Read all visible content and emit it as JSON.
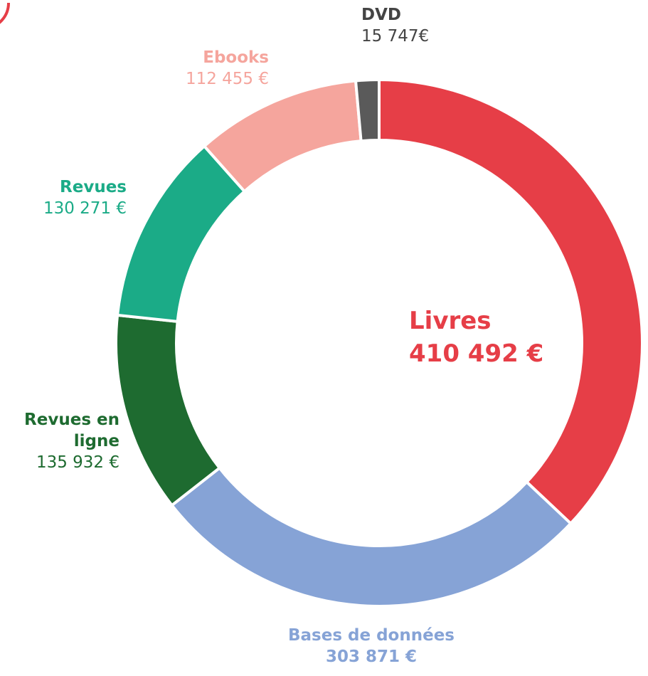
{
  "chart_data": {
    "type": "donut",
    "categories": [
      "Livres",
      "Bases de données",
      "Revues en ligne",
      "Revues",
      "Ebooks",
      "DVD"
    ],
    "values": [
      410492,
      303871,
      135932,
      130271,
      112455,
      15747
    ],
    "value_labels": [
      "410 492 €",
      "303 871 €",
      "135 932 €",
      "130 271 €",
      "112 455 €",
      "15 747€"
    ],
    "colors": [
      "#e63e47",
      "#86a3d6",
      "#1e6b30",
      "#1bab87",
      "#f5a59d",
      "#5a5a5a"
    ]
  }
}
